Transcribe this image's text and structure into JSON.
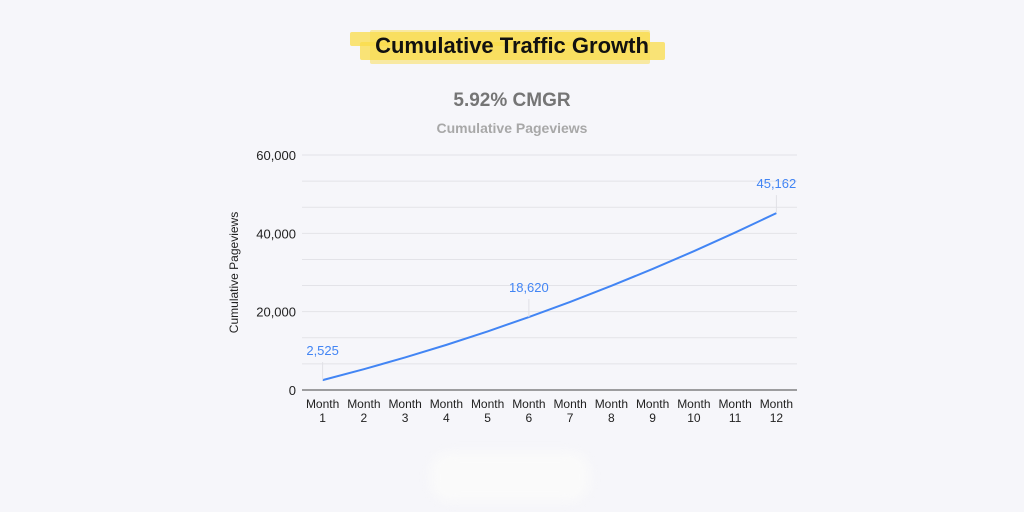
{
  "header": {
    "title": "Cumulative Traffic Growth",
    "highlight_color": "#f9dc4a"
  },
  "chart_data": {
    "type": "line",
    "title": "5.92% CMGR",
    "subtitle": "Cumulative Pageviews",
    "xlabel": "",
    "ylabel": "Cumulative Pageviews",
    "categories": [
      [
        "Month",
        "1"
      ],
      [
        "Month",
        "2"
      ],
      [
        "Month",
        "3"
      ],
      [
        "Month",
        "4"
      ],
      [
        "Month",
        "5"
      ],
      [
        "Month",
        "6"
      ],
      [
        "Month",
        "7"
      ],
      [
        "Month",
        "8"
      ],
      [
        "Month",
        "9"
      ],
      [
        "Month",
        "10"
      ],
      [
        "Month",
        "11"
      ],
      [
        "Month",
        "12"
      ]
    ],
    "series": [
      {
        "values": [
          2525,
          5306,
          8306,
          11525,
          14963,
          18620,
          22496,
          26591,
          30905,
          35438,
          40190,
          45162
        ],
        "color": "#4285f4"
      }
    ],
    "data_labels": [
      {
        "index": 0,
        "text": "2,525"
      },
      {
        "index": 5,
        "text": "18,620"
      },
      {
        "index": 11,
        "text": "45,162"
      }
    ],
    "ylim": [
      0,
      60000
    ],
    "yticks": [
      {
        "value": 0,
        "label": "0"
      },
      {
        "value": 20000,
        "label": "20,000"
      },
      {
        "value": 40000,
        "label": "40,000"
      },
      {
        "value": 60000,
        "label": "60,000"
      }
    ],
    "grid": true,
    "legend": "none"
  }
}
